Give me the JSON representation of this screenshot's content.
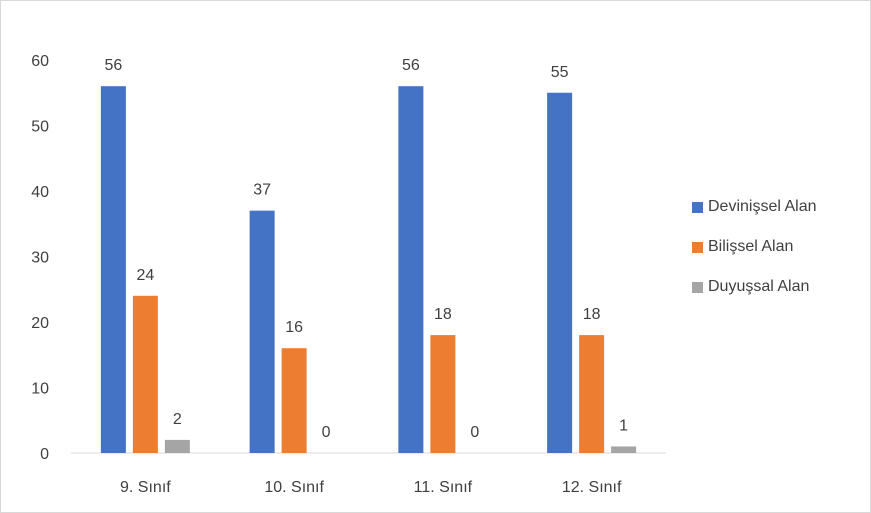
{
  "chart_data": {
    "type": "bar",
    "categories": [
      "9. Sınıf",
      "10. Sınıf",
      "11. Sınıf",
      "12. Sınıf"
    ],
    "series": [
      {
        "name": "Devinişsel Alan",
        "values": [
          56,
          37,
          56,
          55
        ],
        "color": "#4472c4"
      },
      {
        "name": "Bilişsel Alan",
        "values": [
          24,
          16,
          18,
          18
        ],
        "color": "#ed7d31"
      },
      {
        "name": "Duyuşsal Alan",
        "values": [
          2,
          0,
          0,
          1
        ],
        "color": "#a5a5a5"
      }
    ],
    "yticks": [
      0,
      10,
      20,
      30,
      40,
      50,
      60
    ],
    "ylim": [
      0,
      60
    ],
    "grid": false,
    "legend_position": "right",
    "data_labels": true
  }
}
